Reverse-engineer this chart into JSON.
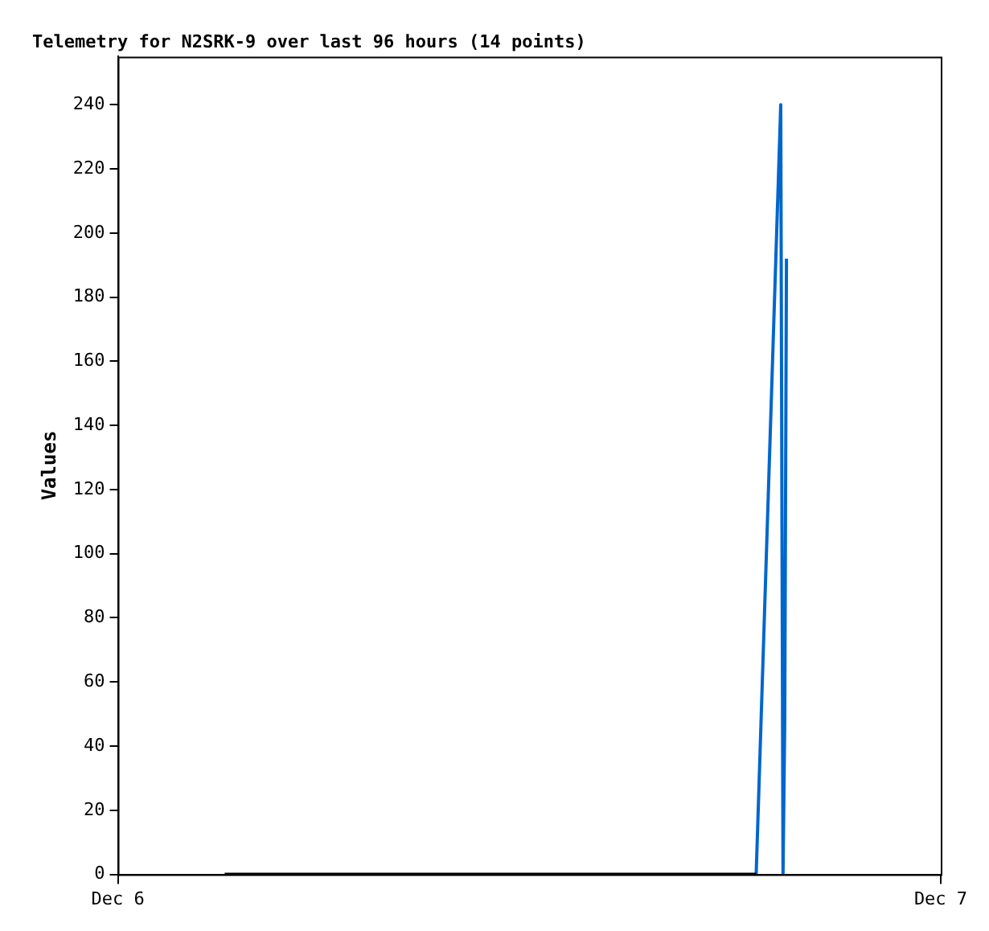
{
  "chart_data": {
    "type": "line",
    "title": "Telemetry for N2SRK-9 over last 96 hours (14 points)",
    "ylabel": "Values",
    "series": [
      {
        "color": "#000000",
        "x": [
          "--12-06T03:07",
          "--12-06T18:37"
        ],
        "values": [
          0,
          0
        ]
      },
      {
        "color": "#0066cc",
        "x": [
          "--12-06T18:37",
          "--12-06T19:20",
          "--12-06T19:24",
          "--12-06T19:27",
          "--12-06T19:29",
          "--12-06T19:30"
        ],
        "values": [
          0,
          240,
          0,
          48,
          145,
          192
        ]
      }
    ],
    "xlim": [
      "--12-06",
      "--12-07"
    ],
    "xticks": [
      {
        "value": "--12-06",
        "label": "Dec 6"
      },
      {
        "value": "--12-07",
        "label": "Dec 7"
      }
    ],
    "ylim": [
      0,
      255
    ],
    "yticks": [
      0,
      20,
      40,
      60,
      80,
      100,
      120,
      140,
      160,
      180,
      200,
      220,
      240
    ],
    "grid": false,
    "legend": false,
    "marker": "none",
    "line_style": "solid"
  }
}
